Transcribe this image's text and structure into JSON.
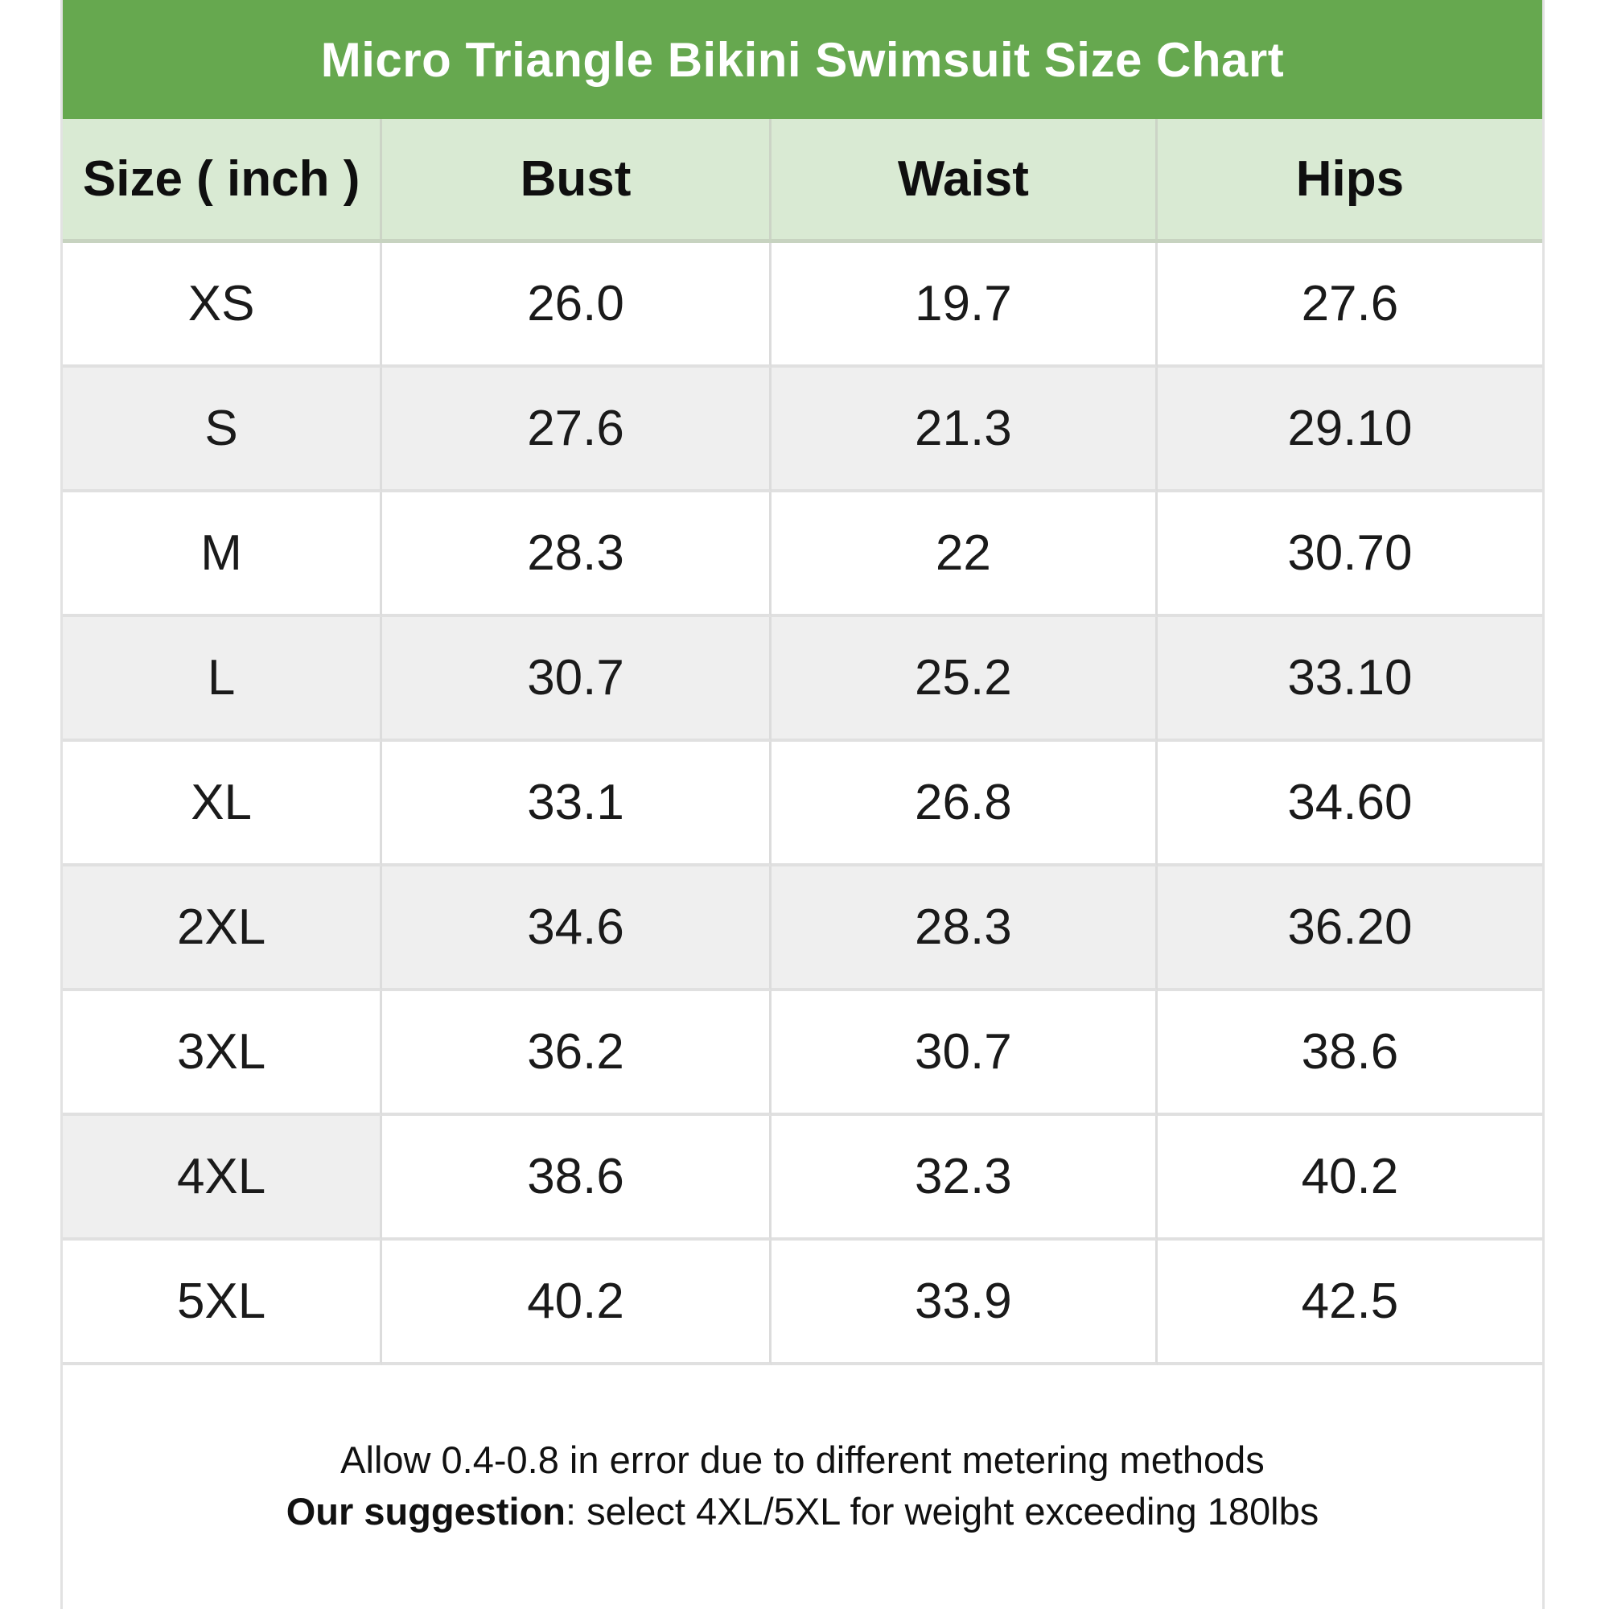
{
  "header": {
    "title": "Micro Triangle Bikini Swimsuit Size Chart"
  },
  "colors": {
    "title_bg": "#66a84f",
    "title_text": "#ffffff",
    "header_bg": "#d9ead3",
    "row_alt_bg": "#efefef",
    "body_text": "#1a1a1a"
  },
  "table": {
    "columns": [
      "Size ( inch )",
      "Bust",
      "Waist",
      "Hips"
    ],
    "rows": [
      {
        "cells": [
          "XS",
          "26.0",
          "19.7",
          "27.6"
        ],
        "shaded": [
          false,
          false,
          false,
          false
        ]
      },
      {
        "cells": [
          "S",
          "27.6",
          "21.3",
          "29.10"
        ],
        "shaded": [
          true,
          true,
          true,
          true
        ]
      },
      {
        "cells": [
          "M",
          "28.3",
          "22",
          "30.70"
        ],
        "shaded": [
          false,
          false,
          false,
          false
        ]
      },
      {
        "cells": [
          "L",
          "30.7",
          "25.2",
          "33.10"
        ],
        "shaded": [
          true,
          true,
          true,
          true
        ]
      },
      {
        "cells": [
          "XL",
          "33.1",
          "26.8",
          "34.60"
        ],
        "shaded": [
          false,
          false,
          false,
          false
        ]
      },
      {
        "cells": [
          "2XL",
          "34.6",
          "28.3",
          "36.20"
        ],
        "shaded": [
          true,
          true,
          true,
          true
        ]
      },
      {
        "cells": [
          "3XL",
          "36.2",
          "30.7",
          "38.6"
        ],
        "shaded": [
          false,
          false,
          false,
          false
        ]
      },
      {
        "cells": [
          "4XL",
          "38.6",
          "32.3",
          "40.2"
        ],
        "shaded": [
          true,
          false,
          false,
          false
        ]
      },
      {
        "cells": [
          "5XL",
          "40.2",
          "33.9",
          "42.5"
        ],
        "shaded": [
          false,
          false,
          false,
          false
        ]
      }
    ]
  },
  "footer": {
    "line1": "Allow 0.4-0.8 in error due to different metering methods",
    "line2_bold": "Our suggestion",
    "line2_rest": ": select 4XL/5XL for weight exceeding 180lbs"
  },
  "chart_data": {
    "type": "table",
    "title": "Micro Triangle Bikini Swimsuit Size Chart",
    "unit": "inch",
    "columns": [
      "Size ( inch )",
      "Bust",
      "Waist",
      "Hips"
    ],
    "rows": [
      [
        "XS",
        "26.0",
        "19.7",
        "27.6"
      ],
      [
        "S",
        "27.6",
        "21.3",
        "29.10"
      ],
      [
        "M",
        "28.3",
        "22",
        "30.70"
      ],
      [
        "L",
        "30.7",
        "25.2",
        "33.10"
      ],
      [
        "XL",
        "33.1",
        "26.8",
        "34.60"
      ],
      [
        "2XL",
        "34.6",
        "28.3",
        "36.20"
      ],
      [
        "3XL",
        "36.2",
        "30.7",
        "38.6"
      ],
      [
        "4XL",
        "38.6",
        "32.3",
        "40.2"
      ],
      [
        "5XL",
        "40.2",
        "33.9",
        "42.5"
      ]
    ],
    "notes": [
      "Allow 0.4-0.8 in error due to different metering methods",
      "Our suggestion: select 4XL/5XL for weight exceeding 180lbs"
    ],
    "layout": {
      "title_position": "top",
      "zebra_striping": true
    }
  }
}
